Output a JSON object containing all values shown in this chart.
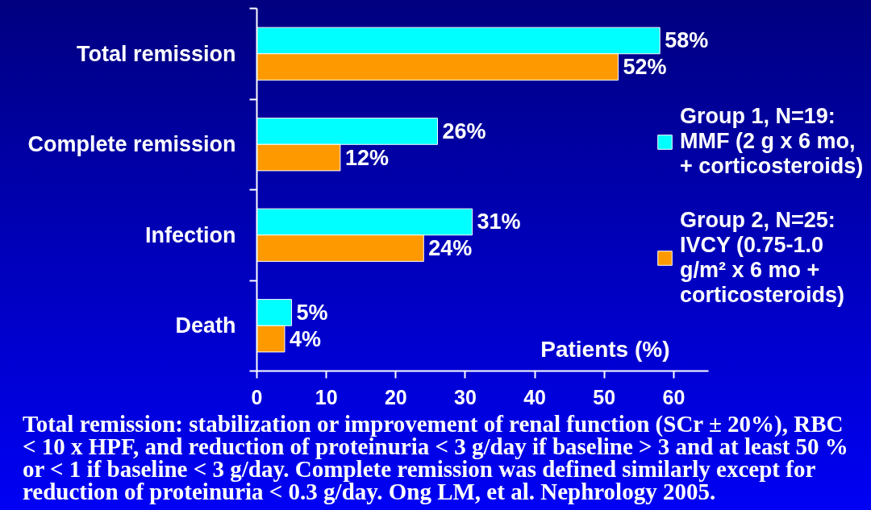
{
  "chart_data": {
    "type": "bar",
    "orientation": "horizontal",
    "categories": [
      "Total remission",
      "Complete remission",
      "Infection",
      "Death"
    ],
    "series": [
      {
        "name": "Group 1, N=19: MMF (2 g x 6 mo, + corticosteroids)",
        "color": "#00ffff",
        "values": [
          58,
          26,
          31,
          5
        ],
        "value_labels": [
          "58%",
          "26%",
          "31%",
          "5%"
        ]
      },
      {
        "name": "Group 2, N=25: IVCY (0.75-1.0 g/m² x 6 mo + corticosteroids)",
        "color": "#ff9900",
        "values": [
          52,
          12,
          24,
          4
        ],
        "value_labels": [
          "52%",
          "12%",
          "24%",
          "4%"
        ]
      }
    ],
    "xlabel": "Patients (%)",
    "xlim": [
      0,
      65
    ],
    "xticks": [
      0,
      10,
      20,
      30,
      40,
      50,
      60
    ],
    "legend": "right",
    "annotations": [
      "Total remission: stabilization or improvement of renal function (SCr ± 20%), RBC < 10 x HPF, and reduction of proteinuria < 3 g/day if baseline > 3 and at least 50 % or < 1 if baseline < 3 g/day. Complete remission was defined similarly except for reduction of proteinuria < 0.3 g/day. Ong LM, et al. Nephrology 2005."
    ]
  }
}
